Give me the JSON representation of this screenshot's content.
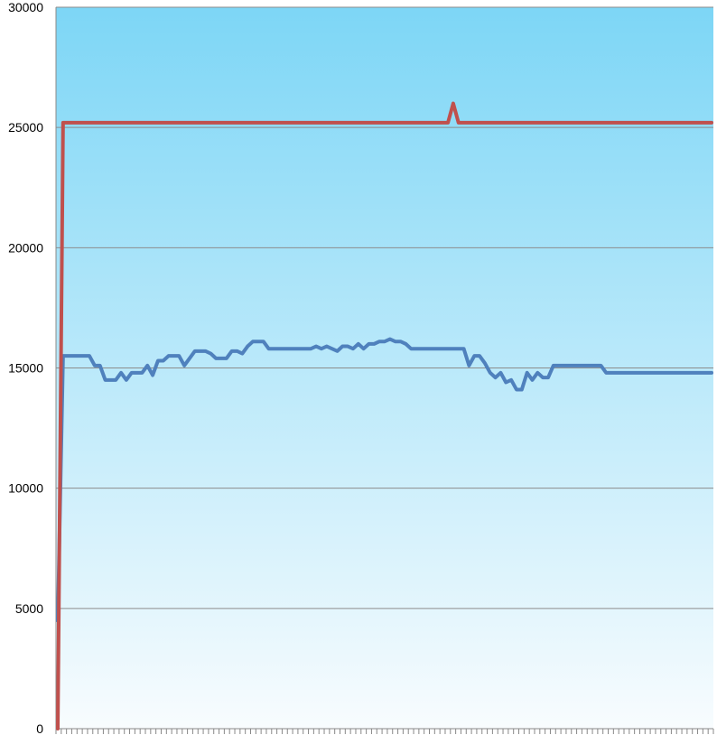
{
  "chart_data": {
    "type": "line",
    "title": "",
    "xlabel": "",
    "ylabel": "",
    "ylim": [
      0,
      30000
    ],
    "yticks": [
      0,
      5000,
      10000,
      15000,
      20000,
      25000,
      30000
    ],
    "ytick_labels": [
      "0",
      "5000",
      "10000",
      "15000",
      "20000",
      "25000",
      "30000"
    ],
    "grid": true,
    "legend": "none",
    "n_points": 125,
    "background_gradient": [
      "#7dd6f6",
      "#f8fcfe"
    ],
    "series": [
      {
        "color": "#c0504d",
        "points": [
          [
            0,
            0
          ],
          [
            1,
            25200
          ],
          [
            74,
            25200
          ],
          [
            75,
            26000
          ],
          [
            76,
            25200
          ],
          [
            124,
            25200
          ]
        ]
      },
      {
        "color": "#4f81bd",
        "points": [
          [
            0,
            4500
          ],
          [
            1,
            15500
          ],
          [
            2,
            15500
          ],
          [
            3,
            15500
          ],
          [
            4,
            15500
          ],
          [
            5,
            15500
          ],
          [
            6,
            15500
          ],
          [
            7,
            15100
          ],
          [
            8,
            15100
          ],
          [
            9,
            14500
          ],
          [
            10,
            14500
          ],
          [
            11,
            14500
          ],
          [
            12,
            14800
          ],
          [
            13,
            14500
          ],
          [
            14,
            14800
          ],
          [
            15,
            14800
          ],
          [
            16,
            14800
          ],
          [
            17,
            15100
          ],
          [
            18,
            14700
          ],
          [
            19,
            15300
          ],
          [
            20,
            15300
          ],
          [
            21,
            15500
          ],
          [
            22,
            15500
          ],
          [
            23,
            15500
          ],
          [
            24,
            15100
          ],
          [
            25,
            15400
          ],
          [
            26,
            15700
          ],
          [
            27,
            15700
          ],
          [
            28,
            15700
          ],
          [
            29,
            15600
          ],
          [
            30,
            15400
          ],
          [
            31,
            15400
          ],
          [
            32,
            15400
          ],
          [
            33,
            15700
          ],
          [
            34,
            15700
          ],
          [
            35,
            15600
          ],
          [
            36,
            15900
          ],
          [
            37,
            16100
          ],
          [
            38,
            16100
          ],
          [
            39,
            16100
          ],
          [
            40,
            15800
          ],
          [
            41,
            15800
          ],
          [
            42,
            15800
          ],
          [
            43,
            15800
          ],
          [
            44,
            15800
          ],
          [
            45,
            15800
          ],
          [
            46,
            15800
          ],
          [
            47,
            15800
          ],
          [
            48,
            15800
          ],
          [
            49,
            15900
          ],
          [
            50,
            15800
          ],
          [
            51,
            15900
          ],
          [
            52,
            15800
          ],
          [
            53,
            15700
          ],
          [
            54,
            15900
          ],
          [
            55,
            15900
          ],
          [
            56,
            15800
          ],
          [
            57,
            16000
          ],
          [
            58,
            15800
          ],
          [
            59,
            16000
          ],
          [
            60,
            16000
          ],
          [
            61,
            16100
          ],
          [
            62,
            16100
          ],
          [
            63,
            16200
          ],
          [
            64,
            16100
          ],
          [
            65,
            16100
          ],
          [
            66,
            16000
          ],
          [
            67,
            15800
          ],
          [
            68,
            15800
          ],
          [
            69,
            15800
          ],
          [
            70,
            15800
          ],
          [
            71,
            15800
          ],
          [
            72,
            15800
          ],
          [
            73,
            15800
          ],
          [
            74,
            15800
          ],
          [
            75,
            15800
          ],
          [
            76,
            15800
          ],
          [
            77,
            15800
          ],
          [
            78,
            15100
          ],
          [
            79,
            15500
          ],
          [
            80,
            15500
          ],
          [
            81,
            15200
          ],
          [
            82,
            14800
          ],
          [
            83,
            14600
          ],
          [
            84,
            14800
          ],
          [
            85,
            14400
          ],
          [
            86,
            14500
          ],
          [
            87,
            14100
          ],
          [
            88,
            14100
          ],
          [
            89,
            14800
          ],
          [
            90,
            14500
          ],
          [
            91,
            14800
          ],
          [
            92,
            14600
          ],
          [
            93,
            14600
          ],
          [
            94,
            15100
          ],
          [
            95,
            15100
          ],
          [
            96,
            15100
          ],
          [
            97,
            15100
          ],
          [
            98,
            15100
          ],
          [
            99,
            15100
          ],
          [
            100,
            15100
          ],
          [
            101,
            15100
          ],
          [
            102,
            15100
          ],
          [
            103,
            15100
          ],
          [
            104,
            14800
          ],
          [
            105,
            14800
          ],
          [
            106,
            14800
          ],
          [
            107,
            14800
          ],
          [
            108,
            14800
          ],
          [
            109,
            14800
          ],
          [
            110,
            14800
          ],
          [
            111,
            14800
          ],
          [
            112,
            14800
          ],
          [
            113,
            14800
          ],
          [
            114,
            14800
          ],
          [
            115,
            14800
          ],
          [
            116,
            14800
          ],
          [
            117,
            14800
          ],
          [
            118,
            14800
          ],
          [
            119,
            14800
          ],
          [
            120,
            14800
          ],
          [
            121,
            14800
          ],
          [
            122,
            14800
          ],
          [
            123,
            14800
          ],
          [
            124,
            14800
          ]
        ]
      }
    ]
  }
}
